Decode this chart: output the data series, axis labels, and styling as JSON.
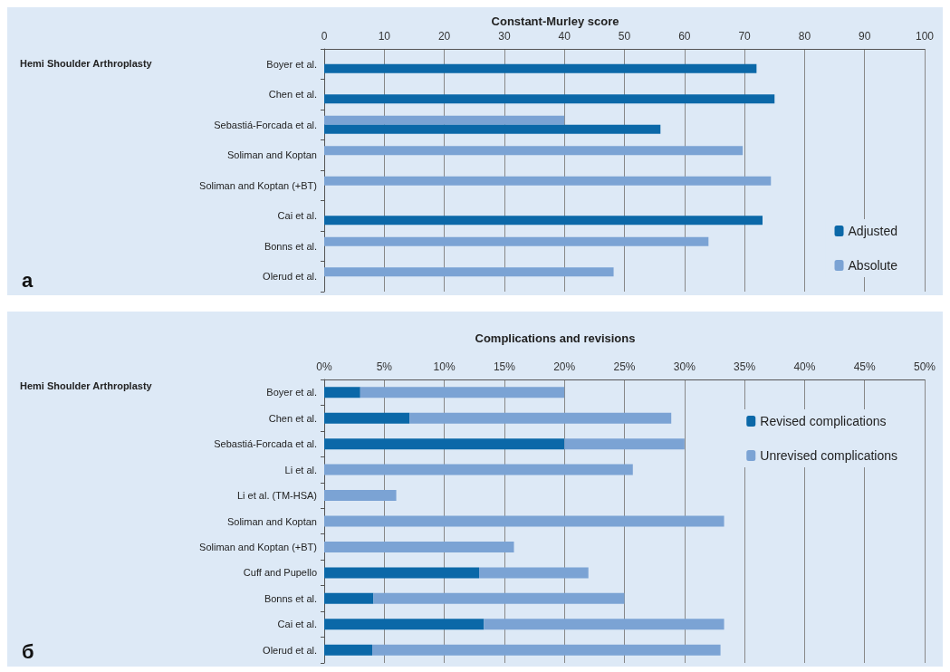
{
  "chart_data": [
    {
      "type": "bar",
      "orientation": "horizontal",
      "title": "Constant-Murley score",
      "categories": [
        "Boyer et al.",
        "Chen et al.",
        "Sebastiá-Forcada et al.",
        "Soliman and Koptan",
        "Soliman and Koptan (+BT)",
        "Cai et al.",
        "Bonns et al.",
        "Olerud et al."
      ],
      "series": [
        {
          "name": "Absolute",
          "color": "#7ba3d4",
          "values": [
            null,
            null,
            40,
            69.7,
            74.4,
            null,
            64,
            48.2
          ]
        },
        {
          "name": "Adjusted",
          "color": "#0b68a8",
          "values": [
            72,
            75,
            56,
            null,
            null,
            73,
            null,
            null
          ]
        }
      ],
      "xlim": [
        0,
        100
      ],
      "xticks": [
        0,
        10,
        20,
        30,
        40,
        50,
        60,
        70,
        80,
        90,
        100
      ],
      "grid": "x",
      "legend": "bottom right",
      "annotations": [
        "Hemi Shoulder Arthroplasty",
        "а"
      ]
    },
    {
      "type": "bar",
      "orientation": "horizontal",
      "stacked": true,
      "title": "Complications and revisions",
      "categories": [
        "Boyer et al.",
        "Chen et al.",
        "Sebastiá-Forcada et al.",
        "Li et al.",
        "Li et al. (TM-HSA)",
        "Soliman and Koptan",
        "Soliman and Koptan (+BT)",
        "Cuff and Pupello",
        "Bonns et al.",
        "Cai et al.",
        "Olerud et al."
      ],
      "series": [
        {
          "name": "Revised complications",
          "color": "#0b68a8",
          "values": [
            3,
            7.1,
            20,
            null,
            null,
            null,
            null,
            12.9,
            4.1,
            13.3,
            4
          ]
        },
        {
          "name": "Unrevised complications",
          "color": "#7ba3d4",
          "values": [
            17,
            21.8,
            10,
            25.7,
            6,
            33.3,
            15.8,
            9.1,
            20.9,
            20,
            29
          ]
        }
      ],
      "xlim": [
        0,
        50
      ],
      "xticks": [
        {
          "value": 0,
          "label": "0%"
        },
        {
          "value": 5,
          "label": "5%"
        },
        {
          "value": 10,
          "label": "10%"
        },
        {
          "value": 15,
          "label": "15%"
        },
        {
          "value": 20,
          "label": "20%"
        },
        {
          "value": 25,
          "label": "25%"
        },
        {
          "value": 30,
          "label": "30%"
        },
        {
          "value": 35,
          "label": "35%"
        },
        {
          "value": 40,
          "label": "40%"
        },
        {
          "value": 45,
          "label": "45%"
        },
        {
          "value": 50,
          "label": "50%"
        }
      ],
      "grid": "x",
      "legend": "top right",
      "annotations": [
        "Hemi Shoulder Arthroplasty",
        "б"
      ]
    }
  ]
}
